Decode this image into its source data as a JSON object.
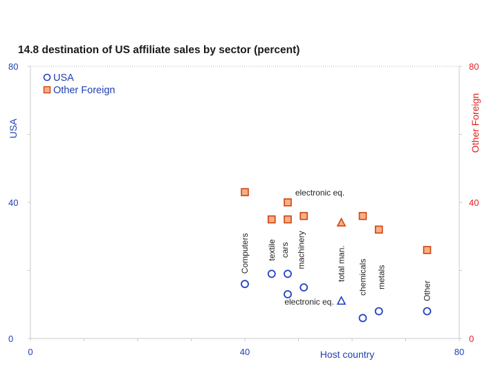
{
  "chart_data": {
    "type": "scatter",
    "title": "14.8 destination of US affiliate sales by sector (percent)",
    "xlabel": "Host country",
    "ylabel_left": "USA",
    "ylabel_right": "Other Foreign",
    "xlim": [
      0,
      80
    ],
    "ylim": [
      0,
      80
    ],
    "x_ticks": [
      "0",
      "40",
      "80"
    ],
    "y_ticks_left": [
      "0",
      "40",
      "80"
    ],
    "y_ticks_right": [
      "0",
      "40",
      "80"
    ],
    "grid": "horizontal-dotted-top",
    "legend_position": "top-left",
    "colors": {
      "usa": "#2040c0",
      "other_foreign_edge": "#d04010",
      "other_foreign_fill": "#f4b183",
      "right_axis": "#e02020"
    },
    "series": [
      {
        "name": "USA",
        "marker": "circle",
        "points": [
          {
            "x": 40,
            "y": 16
          },
          {
            "x": 45,
            "y": 19
          },
          {
            "x": 48,
            "y": 19
          },
          {
            "x": 48,
            "y": 13
          },
          {
            "x": 51,
            "y": 15
          },
          {
            "x": 58,
            "y": 11,
            "marker": "triangle"
          },
          {
            "x": 62,
            "y": 6
          },
          {
            "x": 65,
            "y": 8
          },
          {
            "x": 74,
            "y": 8
          }
        ]
      },
      {
        "name": "Other Foreign",
        "marker": "square",
        "points": [
          {
            "x": 40,
            "y": 43
          },
          {
            "x": 48,
            "y": 40
          },
          {
            "x": 45,
            "y": 35
          },
          {
            "x": 48,
            "y": 35
          },
          {
            "x": 51,
            "y": 36
          },
          {
            "x": 58,
            "y": 34,
            "marker": "triangle"
          },
          {
            "x": 62,
            "y": 36
          },
          {
            "x": 65,
            "y": 32
          },
          {
            "x": 74,
            "y": 26
          }
        ]
      }
    ],
    "annotations": [
      {
        "text": "Computers",
        "x": 40,
        "y": 25,
        "rotate": true
      },
      {
        "text": "electronic eq.",
        "x": 54,
        "y": 42,
        "rotate": false
      },
      {
        "text": "electronic eq.",
        "x": 52,
        "y": 10,
        "rotate": false
      },
      {
        "text": "textile",
        "x": 45,
        "y": 26,
        "rotate": true
      },
      {
        "text": "cars",
        "x": 47.5,
        "y": 26,
        "rotate": true
      },
      {
        "text": "machinery",
        "x": 50.5,
        "y": 26,
        "rotate": true
      },
      {
        "text": "total man.",
        "x": 58,
        "y": 22,
        "rotate": true
      },
      {
        "text": "chemicals",
        "x": 62,
        "y": 18,
        "rotate": true
      },
      {
        "text": "metals",
        "x": 65.5,
        "y": 18,
        "rotate": true
      },
      {
        "text": "Other",
        "x": 74,
        "y": 14,
        "rotate": true
      }
    ]
  }
}
